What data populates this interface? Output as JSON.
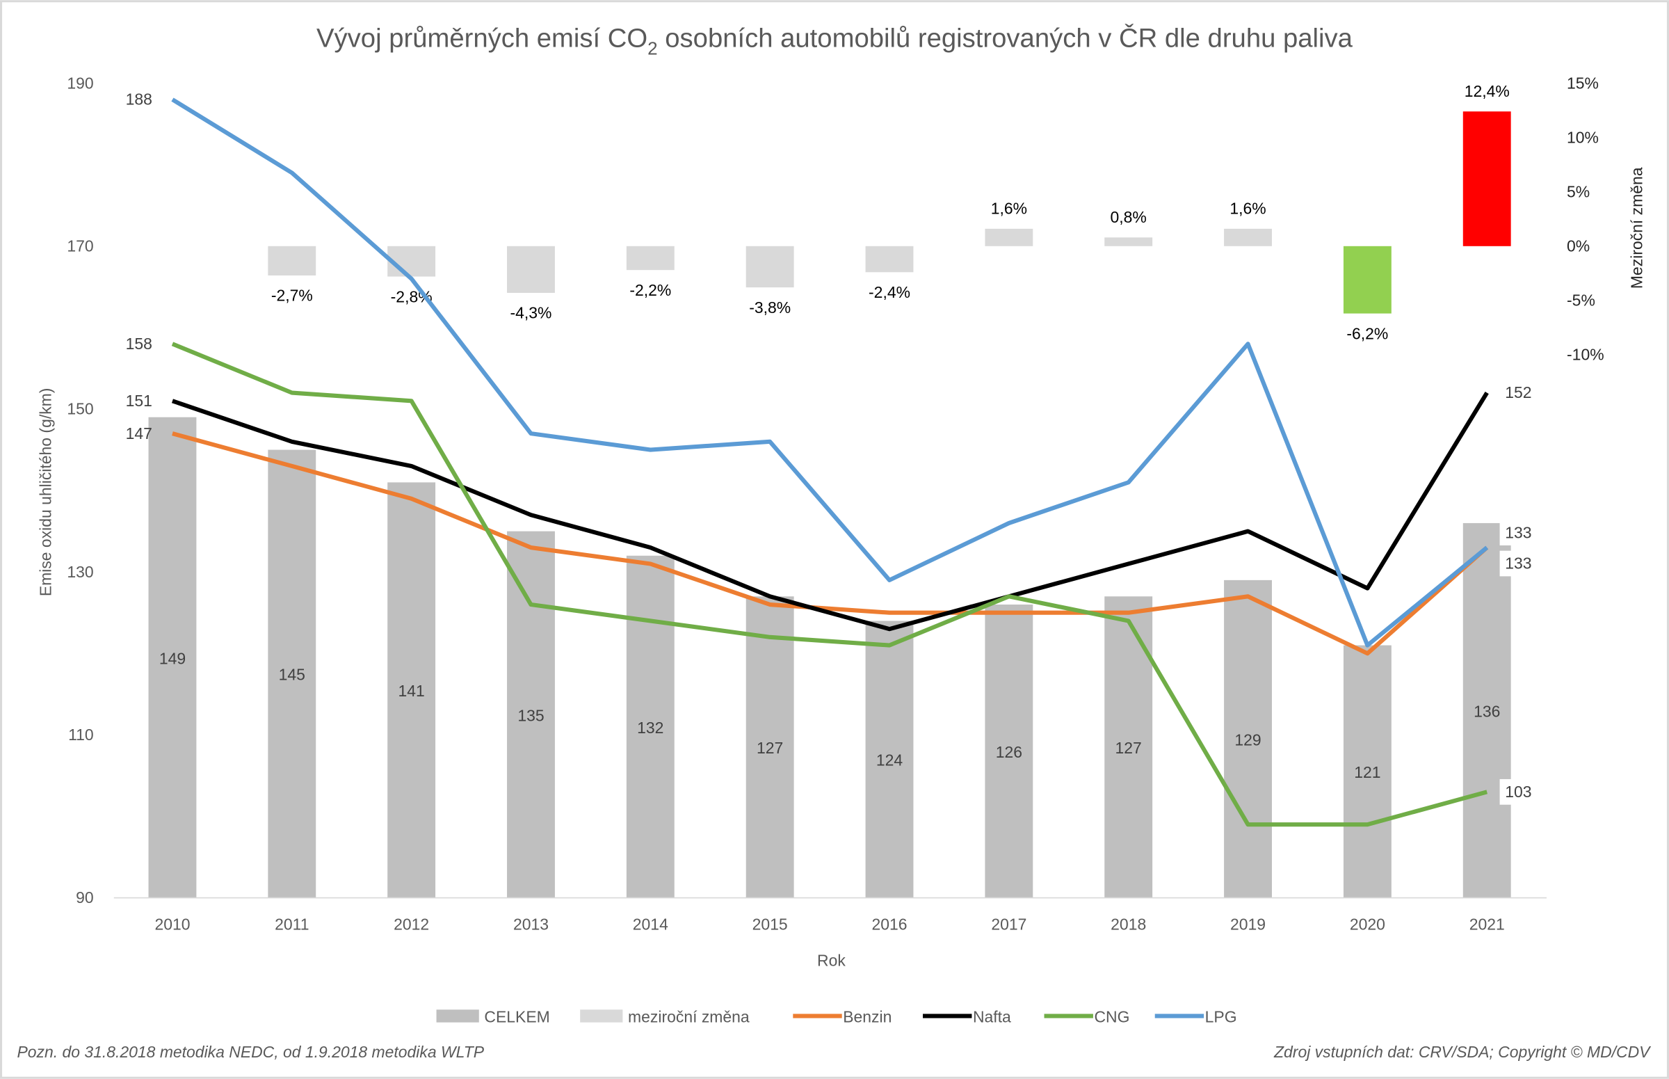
{
  "chart_data": {
    "type": "bar+line",
    "title": "Vývoj průměrných emisí CO₂ osobních automobilů registrovaných v ČR dle druhu paliva",
    "title_parts": {
      "before": "Vývoj průměrných emisí CO",
      "sub": "2",
      "after": " osobních automobilů registrovaných v ČR dle druhu paliva"
    },
    "xlabel": "Rok",
    "ylabel": "Emise oxidu uhličitého (g/km)",
    "y2label": "Meziroční změna",
    "ylim": [
      90,
      190
    ],
    "yticks": [
      90,
      110,
      130,
      150,
      170,
      190
    ],
    "y2lim": [
      -15,
      15
    ],
    "y2ticks": [
      "15%",
      "10%",
      "5%",
      "0%",
      "-5%",
      "-10%"
    ],
    "y2tick_values": [
      15,
      10,
      5,
      0,
      -5,
      -10
    ],
    "categories": [
      "2010",
      "2011",
      "2012",
      "2013",
      "2014",
      "2015",
      "2016",
      "2017",
      "2018",
      "2019",
      "2020",
      "2021"
    ],
    "bars": {
      "name": "CELKEM",
      "color": "#bfbfbf",
      "values": [
        149,
        145,
        141,
        135,
        132,
        127,
        124,
        126,
        127,
        129,
        121,
        136
      ]
    },
    "change": {
      "name": "meziroční změna",
      "color": "#d9d9d9",
      "highlight_colors": {
        "2020": "#92d050",
        "2021": "#ff0000"
      },
      "values": [
        null,
        -2.7,
        -2.8,
        -4.3,
        -2.2,
        -3.8,
        -2.4,
        1.6,
        0.8,
        1.6,
        -6.2,
        12.4
      ],
      "labels": [
        "",
        "-2,7%",
        "-2,8%",
        "-4,3%",
        "-2,2%",
        "-3,8%",
        "-2,4%",
        "1,6%",
        "0,8%",
        "1,6%",
        "-6,2%",
        "12,4%"
      ]
    },
    "series": [
      {
        "name": "Benzin",
        "color": "#ed7d31",
        "values": [
          147,
          143,
          139,
          133,
          131,
          126,
          125,
          125,
          125,
          127,
          120,
          133
        ],
        "start_label": "147",
        "end_label": "133"
      },
      {
        "name": "Nafta",
        "color": "#000000",
        "values": [
          151,
          146,
          143,
          137,
          133,
          127,
          123,
          127,
          131,
          135,
          128,
          152
        ],
        "start_label": "151",
        "end_label": "152"
      },
      {
        "name": "CNG",
        "color": "#70ad47",
        "values": [
          158,
          152,
          151,
          126,
          124,
          122,
          121,
          127,
          124,
          99,
          99,
          103
        ],
        "start_label": "158",
        "end_label": "103"
      },
      {
        "name": "LPG",
        "color": "#5b9bd5",
        "values": [
          188,
          179,
          166,
          147,
          145,
          146,
          129,
          136,
          141,
          158,
          121,
          133
        ],
        "start_label": "188",
        "end_label": "133"
      }
    ],
    "legend_position": "bottom",
    "grid": false
  },
  "footnote_left": "Pozn. do 31.8.2018 metodika NEDC, od 1.9.2018 metodika WLTP",
  "footnote_right": "Zdroj vstupních dat: CRV/SDA; Copyright © MD/CDV"
}
